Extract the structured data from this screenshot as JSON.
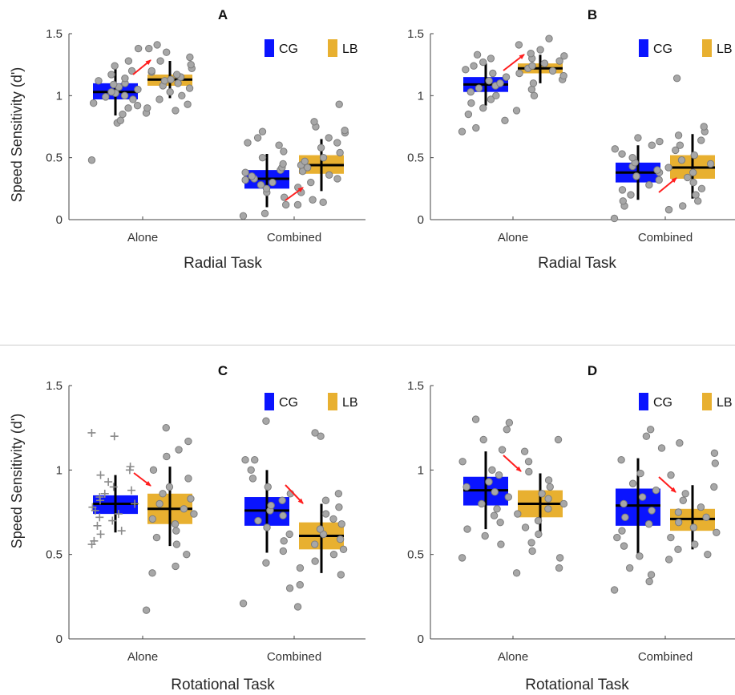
{
  "colors": {
    "CG": "#0a14ff",
    "LB": "#e8b030",
    "point": "#a7a7a7",
    "point_edge": "#7d7d7d",
    "arrow": "#ff1e1e",
    "whisker": "#000000",
    "median": "#000000"
  },
  "chart_data": [
    {
      "type": "box",
      "title": "A",
      "xlabel": "Radial Task",
      "ylabel": "Speed Sensitivity (d')",
      "ylim": [
        0,
        1.5
      ],
      "yticks": [
        "0",
        "0.5",
        "1",
        "1.5"
      ],
      "categories": [
        "Alone",
        "Combined"
      ],
      "legend": [
        "CG",
        "LB"
      ],
      "legend_position": "top-right",
      "series": [
        {
          "name": "CG",
          "boxes": [
            {
              "category": "Alone",
              "q1": 0.97,
              "median": 1.03,
              "q3": 1.1,
              "whisker_low": 0.84,
              "whisker_high": 1.23,
              "points": [
                0.48,
                0.78,
                0.8,
                0.85,
                0.9,
                0.92,
                0.94,
                0.97,
                0.99,
                1.0,
                1.02,
                1.03,
                1.05,
                1.07,
                1.09,
                1.1,
                1.12,
                1.14,
                1.17,
                1.2,
                1.24,
                1.28,
                1.38
              ]
            },
            {
              "category": "Combined",
              "q1": 0.25,
              "median": 0.33,
              "q3": 0.4,
              "whisker_low": 0.1,
              "whisker_high": 0.53,
              "points": [
                0.03,
                0.05,
                0.12,
                0.18,
                0.22,
                0.25,
                0.28,
                0.3,
                0.32,
                0.33,
                0.35,
                0.38,
                0.4,
                0.42,
                0.45,
                0.5,
                0.55,
                0.6,
                0.62,
                0.66,
                0.71
              ]
            }
          ]
        },
        {
          "name": "LB",
          "boxes": [
            {
              "category": "Alone",
              "q1": 1.08,
              "median": 1.13,
              "q3": 1.17,
              "whisker_low": 0.98,
              "whisker_high": 1.28,
              "points": [
                0.86,
                0.88,
                0.9,
                0.93,
                0.97,
                1.0,
                1.03,
                1.06,
                1.08,
                1.1,
                1.12,
                1.13,
                1.15,
                1.17,
                1.19,
                1.2,
                1.22,
                1.25,
                1.28,
                1.31,
                1.35,
                1.38,
                1.41
              ]
            },
            {
              "category": "Combined",
              "q1": 0.37,
              "median": 0.44,
              "q3": 0.52,
              "whisker_low": 0.23,
              "whisker_high": 0.65,
              "points": [
                0.12,
                0.14,
                0.16,
                0.22,
                0.26,
                0.3,
                0.33,
                0.36,
                0.39,
                0.42,
                0.44,
                0.47,
                0.5,
                0.54,
                0.58,
                0.62,
                0.66,
                0.7,
                0.72,
                0.75,
                0.79,
                0.93
              ]
            }
          ]
        }
      ]
    },
    {
      "type": "box",
      "title": "B",
      "xlabel": "Radial Task",
      "ylabel": "",
      "ylim": [
        0,
        1.5
      ],
      "yticks": [
        "0",
        "0.5",
        "1",
        "1.5"
      ],
      "categories": [
        "Alone",
        "Combined"
      ],
      "legend": [
        "CG",
        "LB"
      ],
      "legend_position": "top-right",
      "series": [
        {
          "name": "CG",
          "boxes": [
            {
              "category": "Alone",
              "q1": 1.03,
              "median": 1.09,
              "q3": 1.15,
              "whisker_low": 0.92,
              "whisker_high": 1.26,
              "points": [
                0.71,
                0.74,
                0.8,
                0.85,
                0.9,
                0.94,
                0.97,
                1.0,
                1.03,
                1.06,
                1.08,
                1.1,
                1.12,
                1.15,
                1.18,
                1.21,
                1.24,
                1.27,
                1.3,
                1.33
              ]
            },
            {
              "category": "Combined",
              "q1": 0.3,
              "median": 0.38,
              "q3": 0.46,
              "whisker_low": 0.16,
              "whisker_high": 0.6,
              "points": [
                0.01,
                0.11,
                0.15,
                0.2,
                0.24,
                0.28,
                0.32,
                0.35,
                0.38,
                0.4,
                0.43,
                0.46,
                0.5,
                0.53,
                0.57,
                0.6,
                0.63,
                0.66
              ]
            }
          ]
        },
        {
          "name": "LB",
          "boxes": [
            {
              "category": "Alone",
              "q1": 1.18,
              "median": 1.22,
              "q3": 1.26,
              "whisker_low": 1.1,
              "whisker_high": 1.33,
              "points": [
                0.88,
                1.0,
                1.05,
                1.1,
                1.13,
                1.16,
                1.18,
                1.2,
                1.22,
                1.24,
                1.26,
                1.28,
                1.3,
                1.32,
                1.34,
                1.37,
                1.41,
                1.46
              ]
            },
            {
              "category": "Combined",
              "q1": 0.33,
              "median": 0.42,
              "q3": 0.52,
              "whisker_low": 0.17,
              "whisker_high": 0.69,
              "points": [
                0.08,
                0.11,
                0.15,
                0.2,
                0.25,
                0.3,
                0.34,
                0.38,
                0.42,
                0.45,
                0.48,
                0.52,
                0.56,
                0.6,
                0.64,
                0.68,
                0.71,
                0.75,
                1.14
              ]
            }
          ]
        }
      ]
    },
    {
      "type": "box",
      "title": "C",
      "xlabel": "Rotational Task",
      "ylabel": "Speed Sensitivity (d')",
      "ylim": [
        0,
        1.5
      ],
      "yticks": [
        "0",
        "0.5",
        "1",
        "1.5"
      ],
      "categories": [
        "Alone",
        "Combined"
      ],
      "legend": [
        "CG",
        "LB"
      ],
      "legend_position": "top-right",
      "series": [
        {
          "name": "CG",
          "boxes": [
            {
              "category": "Alone",
              "marker": "plus",
              "q1": 0.74,
              "median": 0.8,
              "q3": 0.85,
              "whisker_low": 0.63,
              "whisker_high": 0.97,
              "points": [
                0.56,
                0.58,
                0.62,
                0.64,
                0.67,
                0.7,
                0.72,
                0.74,
                0.76,
                0.78,
                0.8,
                0.82,
                0.84,
                0.86,
                0.88,
                0.9,
                0.93,
                0.97,
                1.0,
                1.02,
                1.2,
                1.22
              ]
            },
            {
              "category": "Combined",
              "q1": 0.67,
              "median": 0.76,
              "q3": 0.84,
              "whisker_low": 0.51,
              "whisker_high": 1.0,
              "points": [
                0.21,
                0.3,
                0.45,
                0.52,
                0.58,
                0.62,
                0.66,
                0.7,
                0.73,
                0.76,
                0.79,
                0.82,
                0.86,
                0.9,
                0.95,
                1.0,
                1.06,
                1.06,
                1.29
              ]
            }
          ]
        },
        {
          "name": "LB",
          "boxes": [
            {
              "category": "Alone",
              "q1": 0.68,
              "median": 0.77,
              "q3": 0.86,
              "whisker_low": 0.55,
              "whisker_high": 1.02,
              "points": [
                0.17,
                0.39,
                0.43,
                0.5,
                0.56,
                0.6,
                0.64,
                0.68,
                0.71,
                0.74,
                0.77,
                0.8,
                0.83,
                0.86,
                0.9,
                0.95,
                1.0,
                1.08,
                1.12,
                1.17,
                1.25
              ]
            },
            {
              "category": "Combined",
              "q1": 0.53,
              "median": 0.61,
              "q3": 0.69,
              "whisker_low": 0.39,
              "whisker_high": 0.8,
              "points": [
                0.19,
                0.32,
                0.38,
                0.42,
                0.46,
                0.5,
                0.53,
                0.56,
                0.59,
                0.62,
                0.65,
                0.68,
                0.71,
                0.74,
                0.78,
                0.82,
                0.86,
                1.2,
                1.22
              ]
            }
          ]
        }
      ]
    },
    {
      "type": "box",
      "title": "D",
      "xlabel": "Rotational Task",
      "ylabel": "",
      "ylim": [
        0,
        1.5
      ],
      "yticks": [
        "0",
        "0.5",
        "1",
        "1.5"
      ],
      "categories": [
        "Alone",
        "Combined"
      ],
      "legend": [
        "CG",
        "LB"
      ],
      "legend_position": "top-right",
      "series": [
        {
          "name": "CG",
          "boxes": [
            {
              "category": "Alone",
              "q1": 0.79,
              "median": 0.88,
              "q3": 0.96,
              "whisker_low": 0.65,
              "whisker_high": 1.11,
              "points": [
                0.48,
                0.56,
                0.61,
                0.65,
                0.69,
                0.73,
                0.77,
                0.8,
                0.84,
                0.87,
                0.9,
                0.93,
                0.97,
                1.0,
                1.05,
                1.12,
                1.18,
                1.24,
                1.28,
                1.3
              ]
            },
            {
              "category": "Combined",
              "q1": 0.67,
              "median": 0.79,
              "q3": 0.89,
              "whisker_low": 0.49,
              "whisker_high": 1.07,
              "points": [
                0.29,
                0.34,
                0.38,
                0.42,
                0.49,
                0.55,
                0.6,
                0.64,
                0.68,
                0.72,
                0.76,
                0.8,
                0.84,
                0.88,
                0.92,
                0.98,
                1.06,
                1.13,
                1.2,
                1.24
              ]
            }
          ]
        },
        {
          "name": "LB",
          "boxes": [
            {
              "category": "Alone",
              "q1": 0.72,
              "median": 0.8,
              "q3": 0.88,
              "whisker_low": 0.61,
              "whisker_high": 0.98,
              "points": [
                0.39,
                0.42,
                0.48,
                0.52,
                0.57,
                0.62,
                0.66,
                0.7,
                0.74,
                0.77,
                0.8,
                0.83,
                0.86,
                0.9,
                0.94,
                0.99,
                1.05,
                1.11,
                1.18
              ]
            },
            {
              "category": "Combined",
              "q1": 0.64,
              "median": 0.71,
              "q3": 0.77,
              "whisker_low": 0.53,
              "whisker_high": 0.91,
              "points": [
                0.47,
                0.5,
                0.53,
                0.56,
                0.6,
                0.63,
                0.66,
                0.69,
                0.72,
                0.75,
                0.78,
                0.82,
                0.86,
                0.9,
                0.97,
                1.04,
                1.1,
                1.16
              ]
            }
          ]
        }
      ]
    }
  ]
}
